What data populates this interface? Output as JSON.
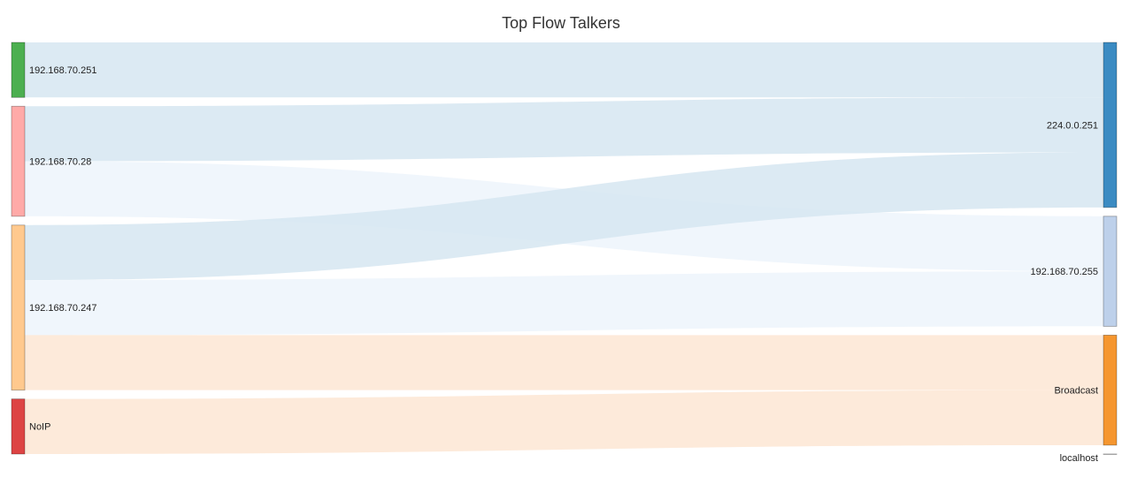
{
  "chart_data": {
    "type": "sankey",
    "title": "Top Flow Talkers",
    "sources": [
      {
        "name": "192.168.70.251",
        "color": "#4caf50"
      },
      {
        "name": "192.168.70.28",
        "color": "#ffaaa8"
      },
      {
        "name": "192.168.70.247",
        "color": "#ffc98e"
      },
      {
        "name": "NoIP",
        "color": "#dd4444"
      }
    ],
    "targets": [
      {
        "name": "224.0.0.251",
        "color": "#3b8bc2"
      },
      {
        "name": "192.168.70.255",
        "color": "#bdd0ea"
      },
      {
        "name": "Broadcast",
        "color": "#f5962f"
      },
      {
        "name": "localhost",
        "color": "#c7c7c7"
      }
    ],
    "links": [
      {
        "source": "192.168.70.251",
        "target": "224.0.0.251",
        "value": 1
      },
      {
        "source": "192.168.70.28",
        "target": "224.0.0.251",
        "value": 1
      },
      {
        "source": "192.168.70.28",
        "target": "192.168.70.255",
        "value": 1
      },
      {
        "source": "192.168.70.247",
        "target": "224.0.0.251",
        "value": 1
      },
      {
        "source": "192.168.70.247",
        "target": "192.168.70.255",
        "value": 1
      },
      {
        "source": "192.168.70.247",
        "target": "Broadcast",
        "value": 1
      },
      {
        "source": "NoIP",
        "target": "Broadcast",
        "value": 1
      },
      {
        "source": "NoIP",
        "target": "localhost",
        "value": 0.001
      }
    ],
    "link_colors": {
      "224.0.0.251": "#d6e6f1",
      "192.168.70.255": "#edf4fc",
      "Broadcast": "#fde6d3",
      "localhost": "#eeeeee"
    }
  }
}
